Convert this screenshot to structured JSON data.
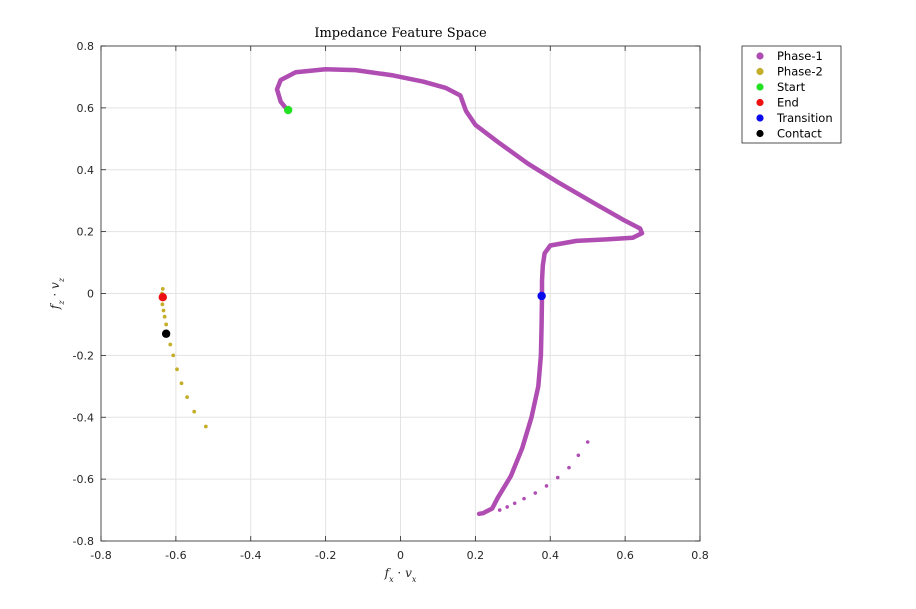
{
  "chart_data": {
    "type": "scatter",
    "title": "Impedance Feature Space",
    "xlabel": "f_x · v_x",
    "ylabel": "f_z · v_z",
    "xlabel_parts": {
      "a": "f",
      "a_sub": "x",
      "dot": " · ",
      "b": "v",
      "b_sub": "x"
    },
    "ylabel_parts": {
      "a": "f",
      "a_sub": "z",
      "dot": " · ",
      "b": "v",
      "b_sub": "z"
    },
    "xlim": [
      -0.8,
      0.8
    ],
    "ylim": [
      -0.8,
      0.8
    ],
    "xticks": [
      -0.8,
      -0.6,
      -0.4,
      -0.2,
      0,
      0.2,
      0.4,
      0.6,
      0.8
    ],
    "yticks": [
      -0.8,
      -0.6,
      -0.4,
      -0.2,
      0,
      0.2,
      0.4,
      0.6,
      0.8
    ],
    "xtick_labels": [
      "-0.8",
      "-0.6",
      "-0.4",
      "-0.2",
      "0",
      "0.2",
      "0.4",
      "0.6",
      "0.8"
    ],
    "ytick_labels": [
      "-0.8",
      "-0.6",
      "-0.4",
      "-0.2",
      "0",
      "0.2",
      "0.4",
      "0.6",
      "0.8"
    ],
    "grid": true,
    "legend_position": "outside-top-right",
    "series": [
      {
        "name": "Phase-1",
        "color": "#b04db3",
        "style": "dense-path",
        "points": [
          [
            -0.3,
            0.59
          ],
          [
            -0.32,
            0.62
          ],
          [
            -0.33,
            0.66
          ],
          [
            -0.32,
            0.69
          ],
          [
            -0.28,
            0.715
          ],
          [
            -0.2,
            0.725
          ],
          [
            -0.12,
            0.722
          ],
          [
            -0.02,
            0.705
          ],
          [
            0.06,
            0.685
          ],
          [
            0.12,
            0.665
          ],
          [
            0.16,
            0.64
          ],
          [
            0.175,
            0.59
          ],
          [
            0.2,
            0.545
          ],
          [
            0.26,
            0.49
          ],
          [
            0.34,
            0.42
          ],
          [
            0.42,
            0.36
          ],
          [
            0.52,
            0.29
          ],
          [
            0.6,
            0.235
          ],
          [
            0.64,
            0.21
          ],
          [
            0.645,
            0.195
          ],
          [
            0.62,
            0.18
          ],
          [
            0.55,
            0.175
          ],
          [
            0.47,
            0.17
          ],
          [
            0.4,
            0.155
          ],
          [
            0.385,
            0.13
          ],
          [
            0.38,
            0.09
          ],
          [
            0.378,
            0.04
          ],
          [
            0.378,
            -0.01
          ],
          [
            0.377,
            -0.1
          ],
          [
            0.375,
            -0.2
          ],
          [
            0.368,
            -0.3
          ],
          [
            0.35,
            -0.4
          ],
          [
            0.325,
            -0.5
          ],
          [
            0.295,
            -0.59
          ],
          [
            0.26,
            -0.66
          ],
          [
            0.245,
            -0.695
          ],
          [
            0.22,
            -0.71
          ],
          [
            0.21,
            -0.712
          ]
        ],
        "scatter_points": [
          [
            0.265,
            -0.7
          ],
          [
            0.285,
            -0.69
          ],
          [
            0.305,
            -0.678
          ],
          [
            0.33,
            -0.663
          ],
          [
            0.36,
            -0.645
          ],
          [
            0.39,
            -0.622
          ],
          [
            0.42,
            -0.595
          ],
          [
            0.45,
            -0.563
          ],
          [
            0.475,
            -0.523
          ],
          [
            0.5,
            -0.48
          ]
        ]
      },
      {
        "name": "Phase-2",
        "color": "#c4ae2a",
        "style": "points",
        "points": [
          [
            -0.635,
            0.015
          ],
          [
            -0.637,
            0.0
          ],
          [
            -0.638,
            -0.01
          ],
          [
            -0.636,
            -0.035
          ],
          [
            -0.633,
            -0.055
          ],
          [
            -0.63,
            -0.075
          ],
          [
            -0.626,
            -0.1
          ],
          [
            -0.621,
            -0.13
          ],
          [
            -0.615,
            -0.165
          ],
          [
            -0.607,
            -0.2
          ],
          [
            -0.597,
            -0.245
          ],
          [
            -0.585,
            -0.29
          ],
          [
            -0.57,
            -0.335
          ],
          [
            -0.551,
            -0.382
          ],
          [
            -0.52,
            -0.43
          ]
        ]
      }
    ],
    "markers": [
      {
        "name": "Start",
        "color": "#22e022",
        "x": -0.3,
        "y": 0.593
      },
      {
        "name": "End",
        "color": "#ee1111",
        "x": -0.635,
        "y": -0.012
      },
      {
        "name": "Transition",
        "color": "#0a0aee",
        "x": 0.377,
        "y": -0.008
      },
      {
        "name": "Contact",
        "color": "#000000",
        "x": -0.626,
        "y": -0.13
      }
    ],
    "legend": [
      {
        "label": "Phase-1",
        "color": "#b04db3"
      },
      {
        "label": "Phase-2",
        "color": "#c4ae2a"
      },
      {
        "label": "Start",
        "color": "#22e022"
      },
      {
        "label": "End",
        "color": "#ee1111"
      },
      {
        "label": "Transition",
        "color": "#0a0aee"
      },
      {
        "label": "Contact",
        "color": "#000000"
      }
    ]
  }
}
